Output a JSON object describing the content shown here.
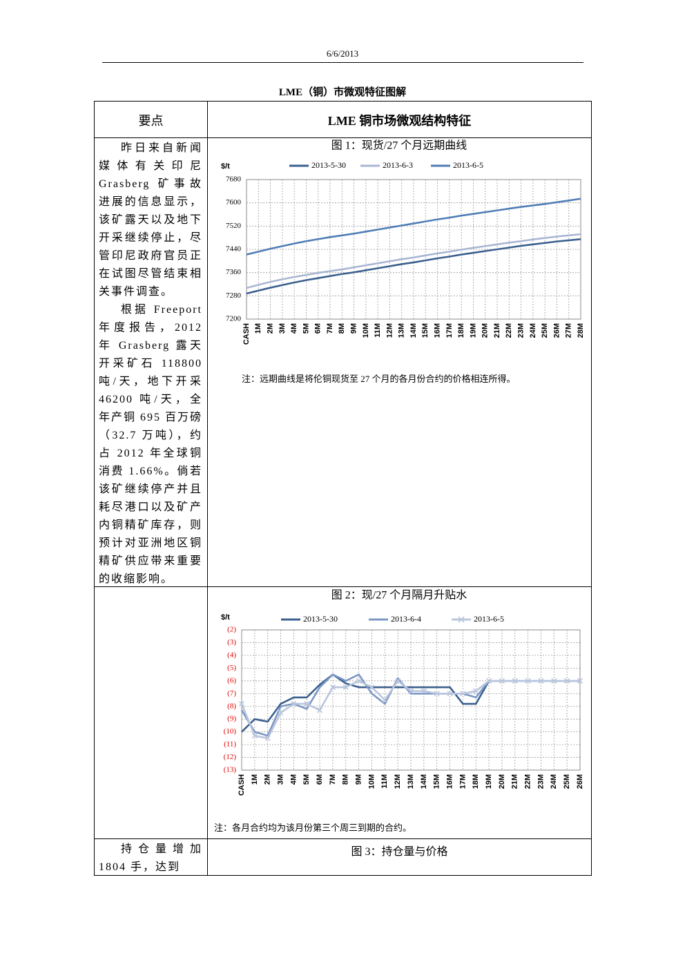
{
  "header": {
    "date": "6/6/2013"
  },
  "title": "LME（铜）市微观特征图解",
  "table": {
    "headers": [
      "要点",
      "LME 铜市场微观结构特征"
    ],
    "row1_paragraphs": [
      "昨日来自新闻媒体有关印尼 Grasberg 矿事故进展的信息显示，该矿露天以及地下开采继续停止，尽管印尼政府官员正在试图尽管结束相关事件调查。",
      "根据 Freeport 年度报告，2012 年 Grasberg 露天开采矿石 118800 吨/天，地下开采 46200 吨/天，全年产铜 695 百万磅（32.7 万吨），约占 2012 年全球铜消费 1.66%。倘若该矿继续停产并且耗尽港口以及矿产内铜精矿库存，则预计对亚洲地区铜精矿供应带来重要的收缩影响。"
    ],
    "row3_text": "持仓量增加 1804 手，达到",
    "row3_figure_title": "图 3：持仓量与价格"
  },
  "chart_data": [
    {
      "type": "line",
      "title": "图 1：现货/27 个月远期曲线",
      "y_unit": "$/t",
      "note": "注：远期曲线是将伦铜现货至 27 个月的各月份合约的价格相连所得。",
      "categories": [
        "CASH",
        "1M",
        "2M",
        "3M",
        "4M",
        "5M",
        "6M",
        "7M",
        "8M",
        "9M",
        "10M",
        "11M",
        "12M",
        "13M",
        "14M",
        "15M",
        "16M",
        "17M",
        "18M",
        "19M",
        "20M",
        "21M",
        "22M",
        "23M",
        "24M",
        "25M",
        "26M",
        "27M",
        "28M"
      ],
      "series": [
        {
          "name": "2013-5-30",
          "color": "#3b5f8e",
          "values": [
            7288,
            7298,
            7308,
            7317,
            7326,
            7334,
            7341,
            7348,
            7355,
            7361,
            7368,
            7375,
            7382,
            7389,
            7395,
            7402,
            7409,
            7415,
            7422,
            7428,
            7434,
            7440,
            7446,
            7452,
            7457,
            7462,
            7467,
            7471,
            7475
          ]
        },
        {
          "name": "2013-6-3",
          "color": "#a9b6d3",
          "values": [
            7307,
            7318,
            7328,
            7337,
            7345,
            7352,
            7359,
            7365,
            7371,
            7378,
            7385,
            7392,
            7399,
            7406,
            7412,
            7419,
            7426,
            7432,
            7439,
            7445,
            7451,
            7457,
            7463,
            7468,
            7474,
            7479,
            7484,
            7488,
            7492
          ]
        },
        {
          "name": "2013-6-5",
          "color": "#4f7db6",
          "values": [
            7422,
            7432,
            7442,
            7451,
            7460,
            7468,
            7475,
            7482,
            7488,
            7494,
            7501,
            7508,
            7515,
            7522,
            7529,
            7536,
            7543,
            7549,
            7556,
            7562,
            7568,
            7574,
            7580,
            7586,
            7591,
            7596,
            7602,
            7608,
            7614
          ]
        }
      ],
      "ylim": [
        7200,
        7680
      ],
      "yticks": [
        7200,
        7280,
        7360,
        7440,
        7520,
        7600,
        7680
      ],
      "grid": true
    },
    {
      "type": "line",
      "title": "图 2：现/27 个月隔月升贴水",
      "y_unit": "$/t",
      "note": "注：各月合约均为该月份第三个周三到期的合约。",
      "categories": [
        "CASH",
        "1M",
        "2M",
        "3M",
        "4M",
        "5M",
        "6M",
        "7M",
        "8M",
        "9M",
        "10M",
        "11M",
        "12M",
        "13M",
        "14M",
        "15M",
        "16M",
        "17M",
        "18M",
        "19M",
        "20M",
        "21M",
        "22M",
        "23M",
        "24M",
        "25M",
        "26M"
      ],
      "series": [
        {
          "name": "2013-5-30",
          "color": "#3b5f8e",
          "values": [
            -10,
            -9,
            -9.2,
            -7.8,
            -7.3,
            -7.3,
            -6.3,
            -5.5,
            -6.2,
            -6.5,
            -6.5,
            -6.5,
            -6.5,
            -6.5,
            -6.5,
            -6.5,
            -6.5,
            -7.8,
            -7.8,
            -6,
            -6,
            -6,
            -6,
            -6,
            -6,
            -6,
            -6
          ]
        },
        {
          "name": "2013-6-4",
          "color": "#7b97c4",
          "values": [
            -8.3,
            -10,
            -10.3,
            -8,
            -7.8,
            -8.2,
            -6.5,
            -5.5,
            -6,
            -5.5,
            -7,
            -7.8,
            -5.8,
            -7,
            -7,
            -7,
            -7,
            -7,
            -7.3,
            -6,
            -6,
            -6,
            -6,
            -6,
            -6,
            -6,
            -6
          ]
        },
        {
          "name": "2013-6-5",
          "color": "#b9c5dd",
          "marker": "x",
          "values": [
            -7.8,
            -10.3,
            -10.5,
            -8.5,
            -7.8,
            -7.8,
            -8.3,
            -6.5,
            -6.5,
            -6,
            -6.5,
            -7.5,
            -6,
            -6.8,
            -6.8,
            -7,
            -7,
            -7,
            -6.8,
            -6,
            -6,
            -6,
            -6,
            -6,
            -6,
            -6,
            -6
          ]
        }
      ],
      "ylim": [
        -13,
        -2
      ],
      "yticks": [
        {
          "value": -2,
          "label": "(2)"
        },
        {
          "value": -3,
          "label": "(3)"
        },
        {
          "value": -4,
          "label": "(4)"
        },
        {
          "value": -5,
          "label": "(5)"
        },
        {
          "value": -6,
          "label": "(6)"
        },
        {
          "value": -7,
          "label": "(7)"
        },
        {
          "value": -8,
          "label": "(8)"
        },
        {
          "value": -9,
          "label": "(9)"
        },
        {
          "value": -10,
          "label": "(10)"
        },
        {
          "value": -11,
          "label": "(11)"
        },
        {
          "value": -12,
          "label": "(12)"
        },
        {
          "value": -13,
          "label": "(13)"
        }
      ],
      "tick_color": "#e00000",
      "grid": true
    }
  ]
}
